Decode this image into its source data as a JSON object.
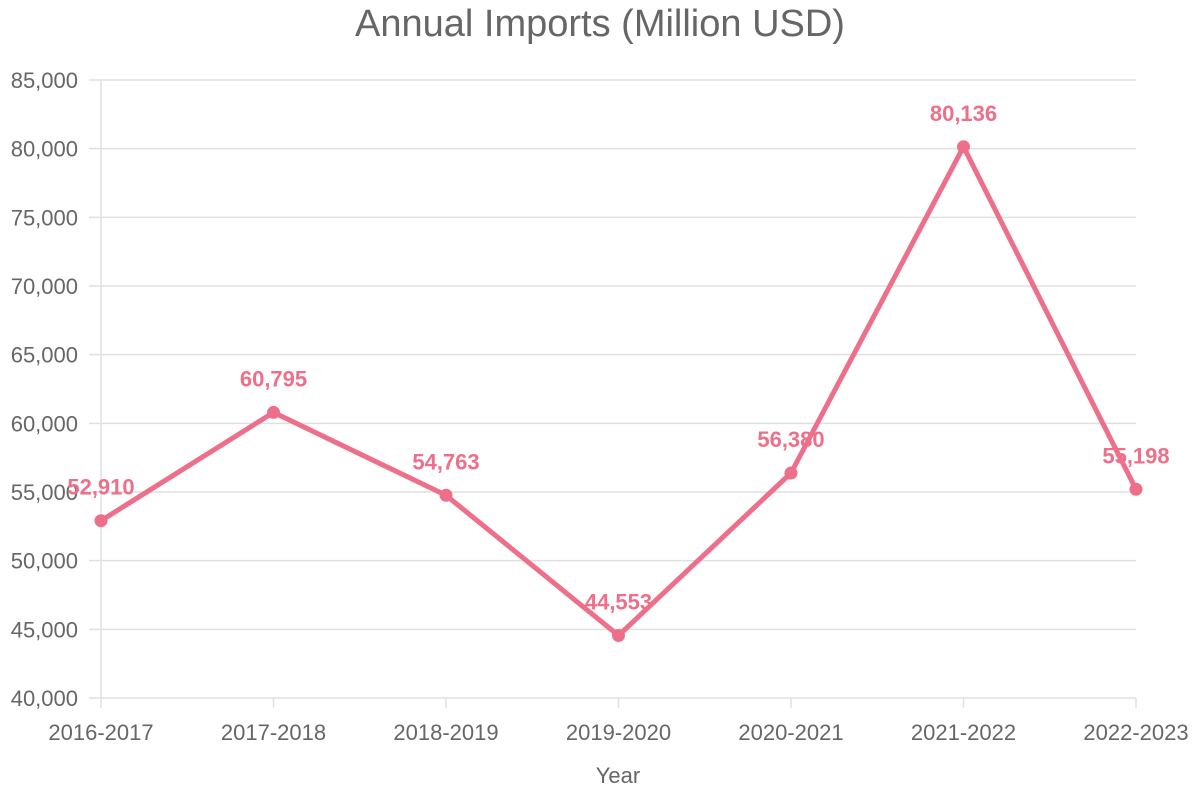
{
  "chart_data": {
    "type": "line",
    "title": "Annual Imports (Million USD)",
    "xlabel": "Year",
    "ylabel": "",
    "categories": [
      "2016-2017",
      "2017-2018",
      "2018-2019",
      "2019-2020",
      "2020-2021",
      "2021-2022",
      "2022-2023"
    ],
    "series": [
      {
        "values": [
          52910,
          60795,
          54763,
          44553,
          56380,
          80136,
          55198
        ],
        "color": "#ee6f8a"
      }
    ],
    "data_labels": [
      "52,910",
      "60,795",
      "54,763",
      "44,553",
      "56,380",
      "80,136",
      "55,198"
    ],
    "ylim": [
      40000,
      85000
    ],
    "y_ticks": [
      40000,
      45000,
      50000,
      55000,
      60000,
      65000,
      70000,
      75000,
      80000,
      85000
    ],
    "y_tick_labels": [
      "40,000",
      "45,000",
      "50,000",
      "55,000",
      "60,000",
      "65,000",
      "70,000",
      "75,000",
      "80,000",
      "85,000"
    ],
    "grid": true,
    "legend": "none"
  }
}
